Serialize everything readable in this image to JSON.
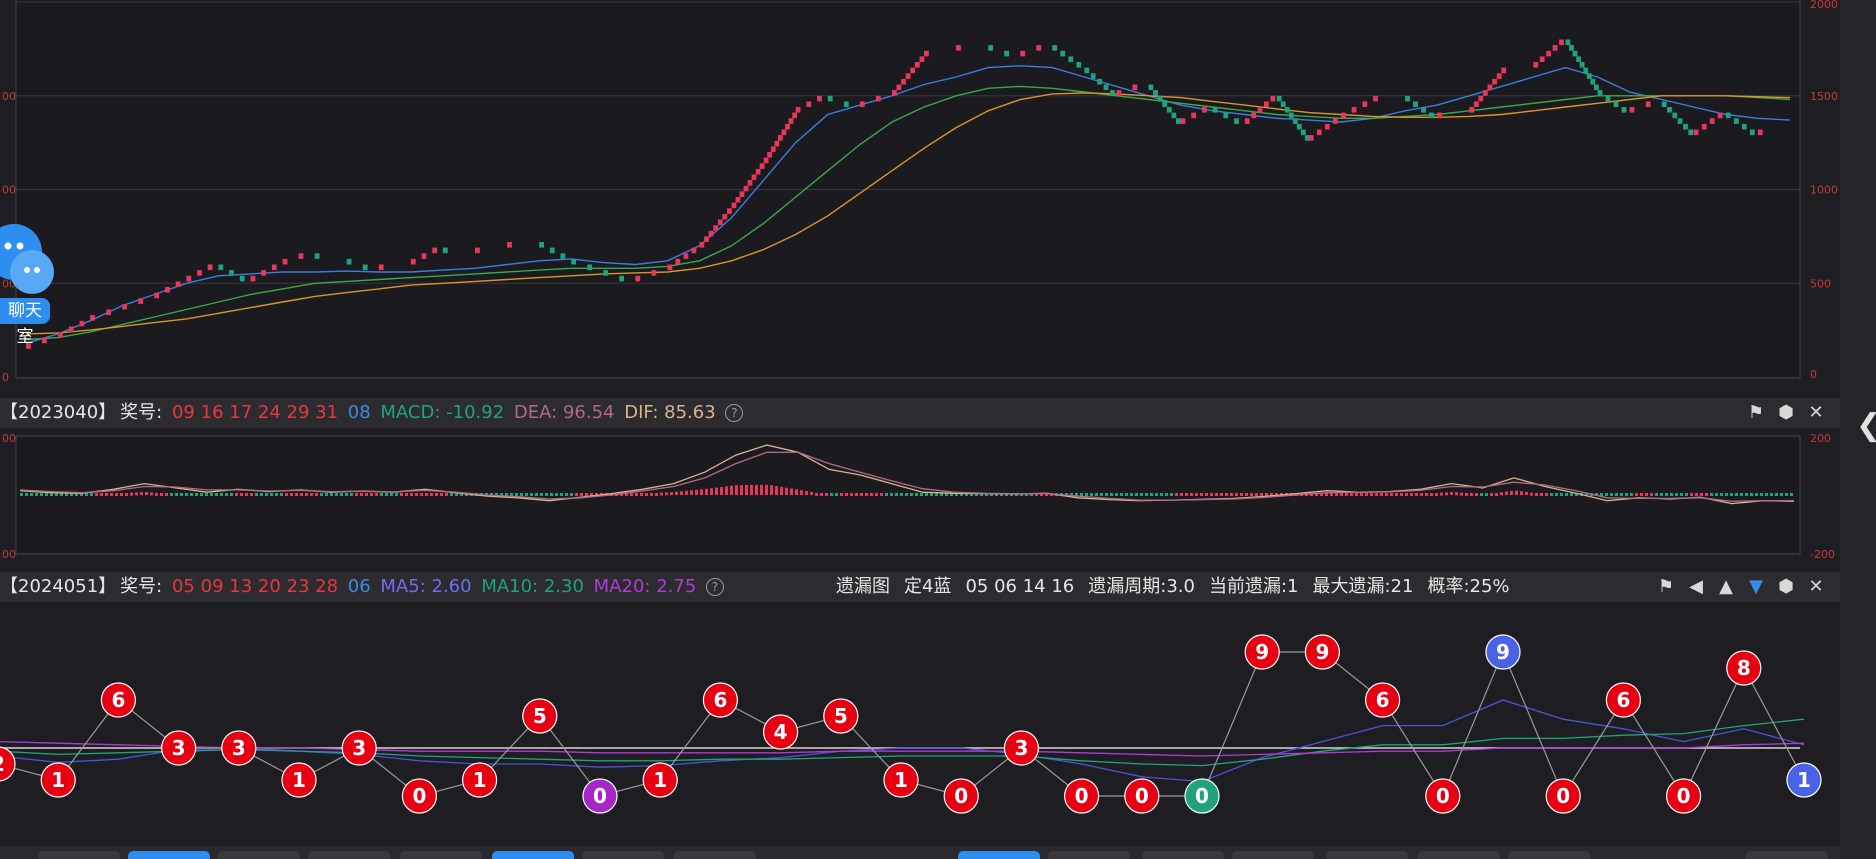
{
  "kline_panel": {
    "y_ticks_right": [
      "2000",
      "1500",
      "1000",
      "500",
      "0"
    ],
    "y_ticks_left": [
      "00",
      "00",
      "00",
      "0"
    ],
    "chat_widget": {
      "label": "聊天室",
      "icon": "chat-bubble-icon"
    }
  },
  "macd_panel": {
    "issue": "【2023040】",
    "prize_label": "奖号:",
    "red_balls": "09 16 17 24 29 31",
    "blue_ball": "08",
    "macd": "MACD: -10.92",
    "dea": "DEA: 96.54",
    "dif": "DIF: 85.63",
    "help": "?",
    "y_right": [
      "200",
      "-200"
    ],
    "y_left": [
      "00",
      "00"
    ]
  },
  "omission_panel": {
    "issue": "【2024051】",
    "prize_label": "奖号:",
    "red_balls": "05 09 13 20 23 28",
    "blue_ball": "06",
    "ma5": "MA5: 2.60",
    "ma10": "MA10: 2.30",
    "ma20": "MA20: 2.75",
    "help": "?",
    "chart_name": "遗漏图",
    "fixed_blue": "定4蓝",
    "fixed_numbers": "05 06 14 16",
    "cycle": "遗漏周期:3.0",
    "current": "当前遗漏:1",
    "max": "最大遗漏:21",
    "prob": "概率:25%"
  },
  "toolbar_icons": {
    "macd": [
      "pin-icon",
      "settings-icon",
      "close-icon"
    ],
    "omission": [
      "pin-icon",
      "prev-icon",
      "up-icon",
      "download-icon",
      "settings-icon",
      "close-icon"
    ]
  },
  "colors": {
    "background": "#1e1e22",
    "up": "#e8365d",
    "down": "#1fa37d",
    "ma_blue": "#3a7ee0",
    "ma_green": "#3aa84a",
    "ma_orange": "#d8962a",
    "ball_red": "#e60012",
    "ball_blue": "#4a63e6",
    "ball_green": "#1fa37d",
    "ball_purple": "#a626c8"
  },
  "chart_data": [
    {
      "type": "line",
      "title": "",
      "ylim": [
        0,
        2000
      ],
      "grid": true,
      "series": [
        {
          "values": [
            160,
            200,
            290,
            350,
            420,
            520,
            600,
            520,
            590,
            650,
            620,
            580,
            560,
            680,
            670,
            650,
            700,
            640,
            560,
            500,
            580,
            690,
            900,
            1150,
            1400,
            1500,
            1440,
            1500,
            1700,
            1700,
            1760,
            1700,
            1760,
            1660,
            1500,
            1550,
            1360,
            1450,
            1360,
            1500,
            1250,
            1380,
            1460,
            1500,
            1380,
            1420,
            1620,
            1650,
            1800,
            1540,
            1400,
            1480,
            1300,
            1400,
            1300,
            1300
          ]
        },
        {
          "values": [
            180,
            230,
            300,
            380,
            440,
            500,
            540,
            550,
            560,
            560,
            565,
            560,
            560,
            570,
            580,
            600,
            620,
            630,
            610,
            600,
            620,
            700,
            850,
            1050,
            1250,
            1400,
            1450,
            1500,
            1560,
            1600,
            1650,
            1660,
            1650,
            1600,
            1550,
            1500,
            1450,
            1420,
            1400,
            1380,
            1370,
            1360,
            1380,
            1420,
            1450,
            1500,
            1550,
            1600,
            1650,
            1600,
            1520,
            1480,
            1440,
            1400,
            1380,
            1370
          ]
        },
        {
          "values": [
            200,
            210,
            240,
            280,
            320,
            360,
            400,
            440,
            470,
            500,
            510,
            520,
            530,
            540,
            550,
            560,
            570,
            580,
            580,
            580,
            590,
            620,
            700,
            820,
            960,
            1100,
            1240,
            1360,
            1440,
            1500,
            1540,
            1550,
            1540,
            1520,
            1500,
            1480,
            1460,
            1440,
            1420,
            1400,
            1390,
            1380,
            1380,
            1390,
            1400,
            1420,
            1440,
            1460,
            1480,
            1500,
            1500,
            1500,
            1500,
            1500,
            1490,
            1480
          ]
        },
        {
          "values": [
            230,
            235,
            250,
            270,
            290,
            310,
            340,
            370,
            400,
            430,
            450,
            470,
            490,
            500,
            510,
            520,
            530,
            540,
            550,
            555,
            560,
            580,
            620,
            680,
            760,
            860,
            980,
            1100,
            1220,
            1330,
            1420,
            1480,
            1510,
            1515,
            1510,
            1500,
            1490,
            1470,
            1450,
            1430,
            1410,
            1400,
            1390,
            1385,
            1385,
            1390,
            1400,
            1420,
            1440,
            1460,
            1480,
            1500,
            1500,
            1500,
            1495,
            1490
          ]
        }
      ]
    },
    {
      "type": "line",
      "title": "",
      "ylim": [
        -200,
        200
      ],
      "series": [
        {
          "values": [
            15,
            8,
            6,
            20,
            40,
            25,
            10,
            20,
            12,
            18,
            10,
            14,
            10,
            20,
            8,
            -4,
            -10,
            -20,
            -8,
            5,
            20,
            40,
            80,
            140,
            175,
            150,
            90,
            70,
            40,
            10,
            6,
            5,
            4,
            6,
            -10,
            -16,
            -20,
            -18,
            -15,
            -12,
            -5,
            5,
            15,
            10,
            12,
            20,
            40,
            25,
            60,
            30,
            6,
            -20,
            -10,
            -14,
            -8,
            -30,
            -20,
            -22
          ]
        },
        {
          "values": [
            18,
            12,
            8,
            15,
            30,
            28,
            18,
            18,
            14,
            16,
            12,
            13,
            11,
            16,
            10,
            0,
            -6,
            -14,
            -10,
            0,
            14,
            30,
            60,
            110,
            150,
            150,
            110,
            80,
            50,
            22,
            10,
            6,
            5,
            5,
            -4,
            -12,
            -18,
            -18,
            -16,
            -14,
            -8,
            0,
            8,
            10,
            11,
            16,
            30,
            28,
            45,
            35,
            15,
            -10,
            -12,
            -12,
            -10,
            -22,
            -20,
            -20
          ]
        }
      ]
    },
    {
      "type": "line",
      "title": "",
      "ylim": [
        0,
        10
      ],
      "x": [
        1,
        2,
        3,
        4,
        5,
        6,
        7,
        8,
        9,
        10,
        11,
        12,
        13,
        14,
        15,
        16,
        17,
        18,
        19,
        20,
        21,
        22,
        23,
        24,
        25,
        26,
        27,
        28,
        29,
        30,
        31
      ],
      "series": [
        {
          "name": "omission",
          "values": [
            2,
            1,
            6,
            3,
            3,
            1,
            3,
            0,
            1,
            5,
            0,
            1,
            6,
            4,
            5,
            1,
            0,
            3,
            0,
            0,
            0,
            9,
            9,
            6,
            0,
            9,
            0,
            6,
            0,
            8,
            1
          ]
        },
        {
          "name": "MA5",
          "values": [
            2.5,
            2.1,
            2.3,
            2.9,
            3.0,
            2.8,
            2.6,
            2.2,
            2.0,
            2.0,
            1.8,
            1.9,
            2.2,
            2.4,
            2.8,
            3.0,
            3.0,
            2.6,
            2.0,
            1.2,
            0.9,
            2.4,
            3.4,
            4.4,
            4.4,
            6.0,
            4.8,
            4.2,
            3.4,
            4.2,
            3.2
          ]
        },
        {
          "name": "MA10",
          "values": [
            2.8,
            2.6,
            2.7,
            2.8,
            2.9,
            2.8,
            2.7,
            2.5,
            2.4,
            2.3,
            2.2,
            2.2,
            2.3,
            2.3,
            2.4,
            2.5,
            2.5,
            2.5,
            2.2,
            2.0,
            1.9,
            2.3,
            2.8,
            3.2,
            3.2,
            3.6,
            3.6,
            3.8,
            3.9,
            4.4,
            4.8
          ]
        },
        {
          "name": "MA20",
          "values": [
            3.4,
            3.3,
            3.2,
            3.1,
            3.0,
            3.0,
            2.9,
            2.8,
            2.8,
            2.8,
            2.7,
            2.7,
            2.7,
            2.7,
            2.8,
            2.8,
            2.8,
            2.8,
            2.7,
            2.6,
            2.5,
            2.6,
            2.7,
            2.8,
            2.8,
            3.0,
            3.0,
            3.0,
            3.0,
            3.2,
            3.3
          ]
        },
        {
          "name": "baseline",
          "values": [
            3.0,
            3.0,
            3.0,
            3.0,
            3.0,
            3.0,
            3.0,
            3.0,
            3.0,
            3.0,
            3.0,
            3.0,
            3.0,
            3.0,
            3.0,
            3.0,
            3.0,
            3.0,
            3.0,
            3.0,
            3.0,
            3.0,
            3.0,
            3.0,
            3.0,
            3.0,
            3.0,
            3.0,
            3.0,
            3.0,
            3.0
          ]
        }
      ],
      "ball_colors": [
        "red",
        "red",
        "red",
        "red",
        "red",
        "red",
        "red",
        "red",
        "red",
        "red",
        "purple",
        "red",
        "red",
        "red",
        "red",
        "red",
        "red",
        "red",
        "red",
        "red",
        "green",
        "red",
        "red",
        "red",
        "red",
        "blue",
        "red",
        "red",
        "red",
        "red",
        "blue"
      ]
    }
  ]
}
